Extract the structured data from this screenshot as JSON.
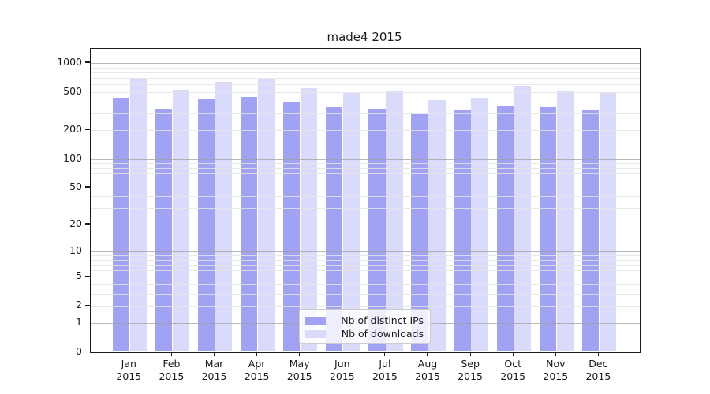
{
  "chart_data": {
    "type": "bar",
    "title": "made4 2015",
    "xlabel": "",
    "ylabel": "",
    "scale": "log1p",
    "grid": "on",
    "legend_position": "lower center-left, inside plot",
    "categories": [
      "Jan",
      "Feb",
      "Mar",
      "Apr",
      "May",
      "Jun",
      "Jul",
      "Aug",
      "Sep",
      "Oct",
      "Nov",
      "Dec"
    ],
    "x_year_label": "2015",
    "y_ticks": [
      0,
      1,
      2,
      5,
      10,
      20,
      50,
      100,
      200,
      500,
      1000
    ],
    "y_major_gridlines": [
      1,
      10,
      100,
      1000
    ],
    "y_minor_gridlines": [
      2,
      3,
      4,
      5,
      6,
      7,
      8,
      9,
      20,
      30,
      40,
      50,
      60,
      70,
      80,
      90,
      200,
      300,
      400,
      500,
      600,
      700,
      800,
      900
    ],
    "ylim": [
      0,
      1404
    ],
    "series": [
      {
        "name": "Nb of distinct IPs",
        "color": "#a2a2f3",
        "values": [
          439,
          335,
          420,
          442,
          397,
          348,
          337,
          293,
          321,
          364,
          350,
          331
        ]
      },
      {
        "name": "Nb of downloads",
        "color": "#dadafb",
        "values": [
          695,
          527,
          633,
          682,
          547,
          489,
          515,
          415,
          439,
          582,
          507,
          501
        ]
      }
    ]
  }
}
